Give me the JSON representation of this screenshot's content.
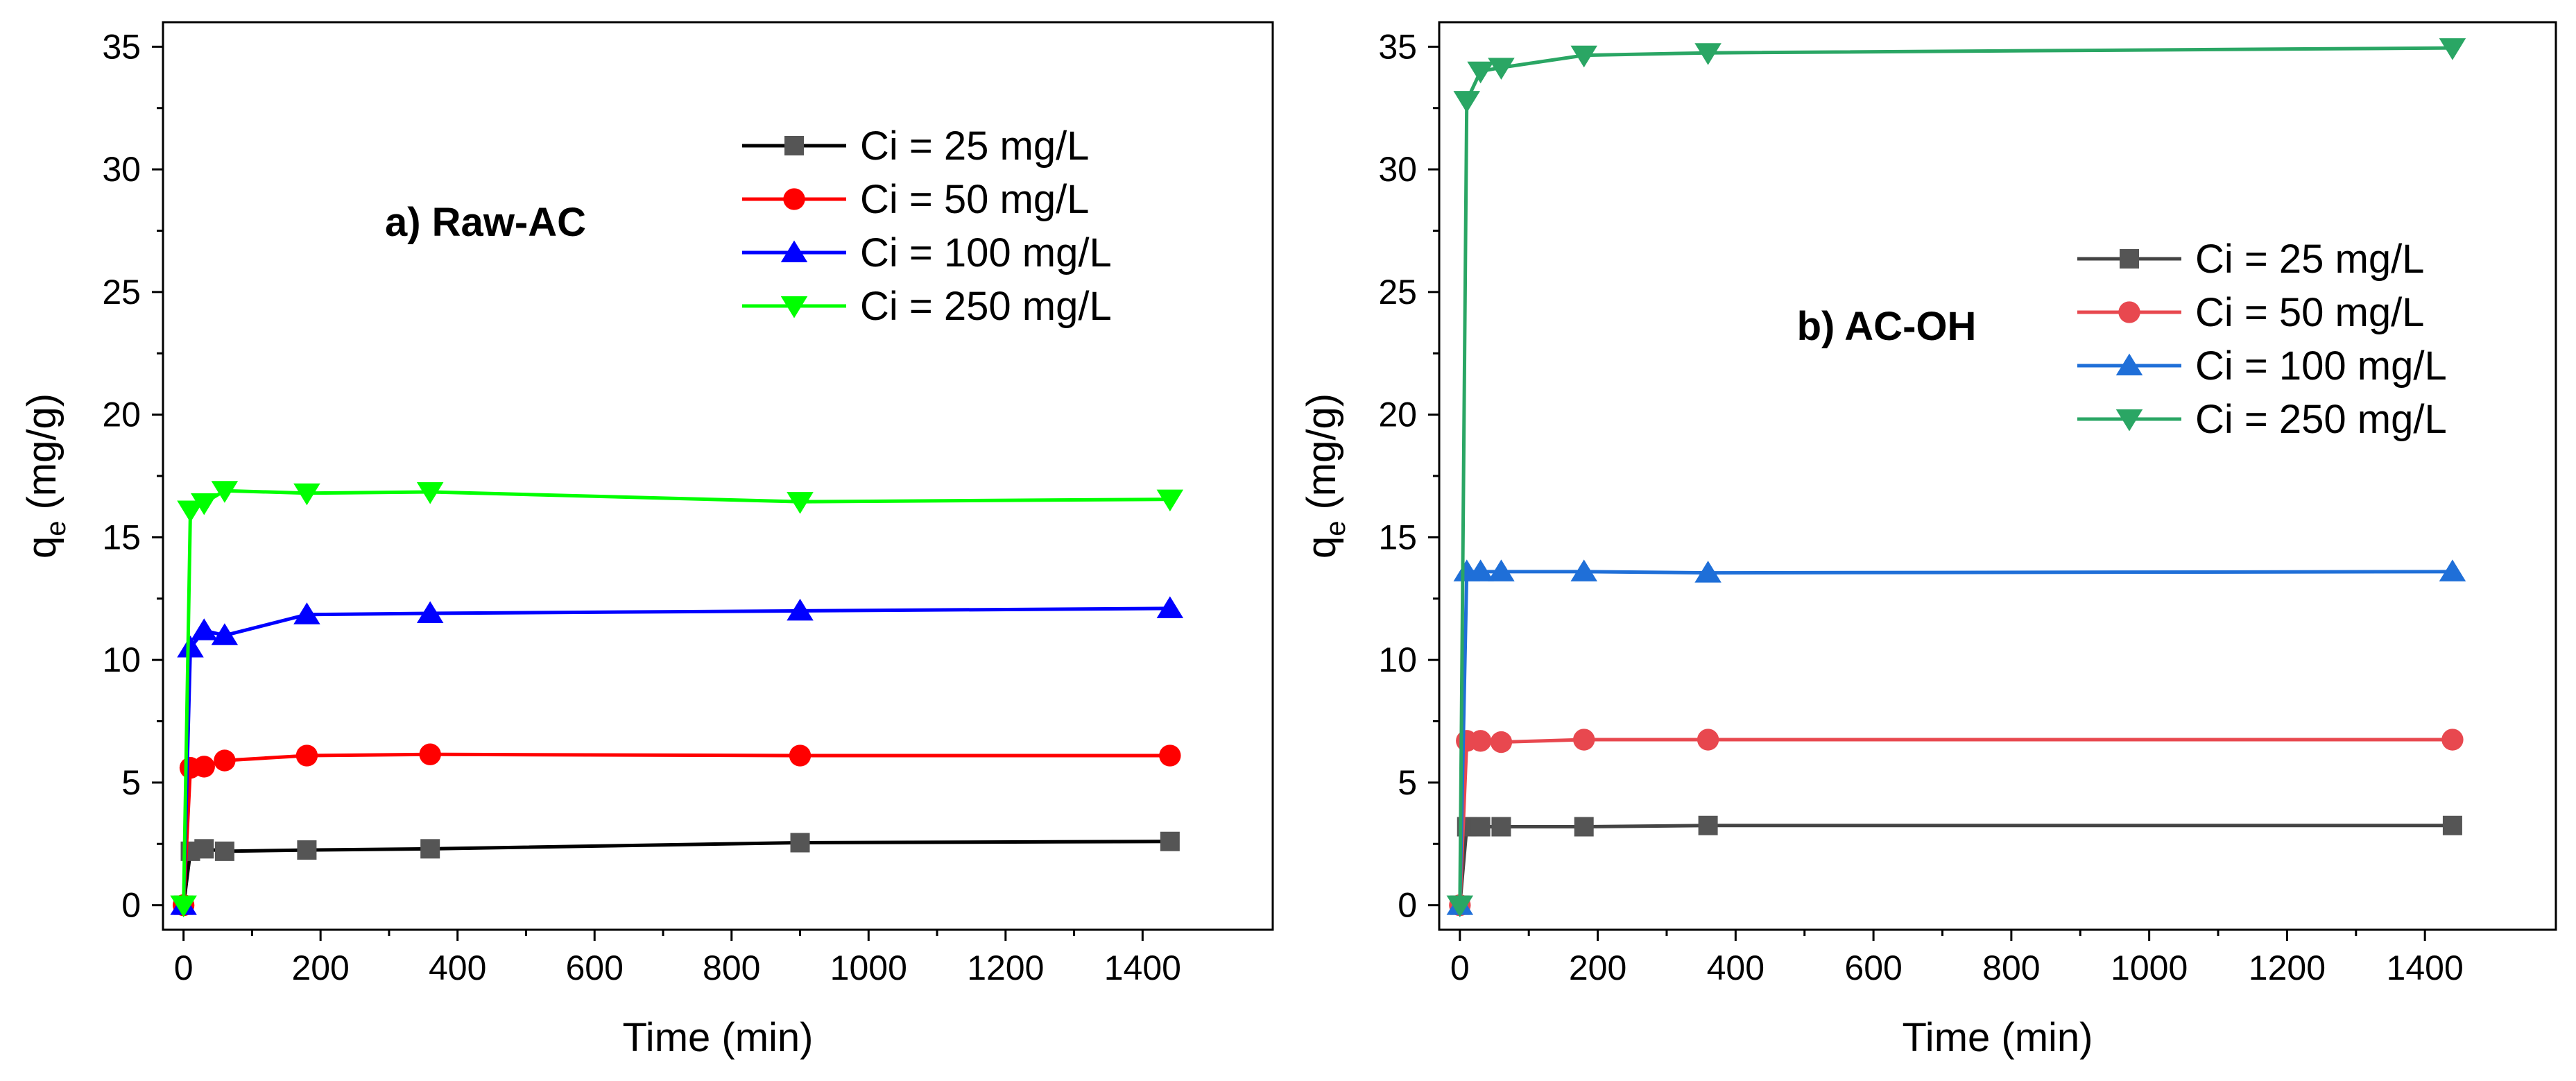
{
  "chart_data": [
    {
      "type": "line",
      "title": "a) Raw-AC",
      "xlabel": "Time (min)",
      "ylabel_main": "q",
      "ylabel_sub": "e",
      "ylabel_unit": "(mg/g)",
      "xlim": [
        -30,
        1590
      ],
      "ylim": [
        -1,
        36
      ],
      "xticks": [
        0,
        200,
        400,
        600,
        800,
        1000,
        1200,
        1400
      ],
      "yticks": [
        0,
        5,
        10,
        15,
        20,
        25,
        30,
        35
      ],
      "x": [
        0,
        10,
        30,
        60,
        180,
        360,
        900,
        1440
      ],
      "legend_position": "top-right",
      "series": [
        {
          "name": "Ci = 25 mg/L",
          "color": "#000000",
          "marker_color": "#555555",
          "marker": "square",
          "values": [
            0,
            2.2,
            2.3,
            2.2,
            2.25,
            2.3,
            2.55,
            2.6
          ]
        },
        {
          "name": "Ci = 50 mg/L",
          "color": "#ff0000",
          "marker_color": "#ff0000",
          "marker": "circle",
          "values": [
            0,
            5.6,
            5.65,
            5.9,
            6.1,
            6.15,
            6.1,
            6.1
          ]
        },
        {
          "name": "Ci = 100 mg/L",
          "color": "#0000ff",
          "marker_color": "#0000ff",
          "marker": "triangle-up",
          "values": [
            0,
            10.5,
            11.2,
            11.0,
            11.85,
            11.9,
            12.0,
            12.1
          ]
        },
        {
          "name": "Ci = 250 mg/L",
          "color": "#00ff00",
          "marker_color": "#00ff00",
          "marker": "triangle-down",
          "values": [
            0,
            16.1,
            16.4,
            16.9,
            16.8,
            16.85,
            16.45,
            16.55
          ]
        }
      ]
    },
    {
      "type": "line",
      "title": "b) AC-OH",
      "xlabel": "Time (min)",
      "ylabel_main": "q",
      "ylabel_sub": "e",
      "ylabel_unit": "(mg/g)",
      "xlim": [
        -30,
        1590
      ],
      "ylim": [
        -1,
        36
      ],
      "xticks": [
        0,
        200,
        400,
        600,
        800,
        1000,
        1200,
        1400
      ],
      "yticks": [
        0,
        5,
        10,
        15,
        20,
        25,
        30,
        35
      ],
      "x": [
        0,
        10,
        30,
        60,
        180,
        360,
        1440
      ],
      "legend_position": "right",
      "series": [
        {
          "name": "Ci = 25 mg/L",
          "color": "#444444",
          "marker_color": "#555555",
          "marker": "square",
          "values": [
            0,
            3.2,
            3.2,
            3.2,
            3.2,
            3.25,
            3.25
          ]
        },
        {
          "name": "Ci = 50 mg/L",
          "color": "#e8484f",
          "marker_color": "#e8484f",
          "marker": "circle",
          "values": [
            0,
            6.7,
            6.7,
            6.65,
            6.75,
            6.75,
            6.75
          ]
        },
        {
          "name": "Ci = 100 mg/L",
          "color": "#1f6fd8",
          "marker_color": "#1f6fd8",
          "marker": "triangle-up",
          "values": [
            0,
            13.6,
            13.6,
            13.6,
            13.6,
            13.55,
            13.6
          ]
        },
        {
          "name": "Ci = 250 mg/L",
          "color": "#2aa664",
          "marker_color": "#2aa664",
          "marker": "triangle-down",
          "values": [
            0,
            32.8,
            34.0,
            34.15,
            34.65,
            34.75,
            34.95
          ]
        }
      ]
    }
  ]
}
